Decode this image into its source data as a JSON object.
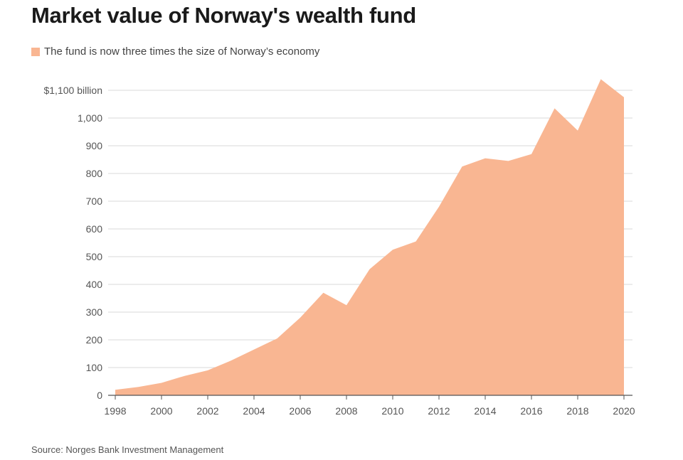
{
  "title": "Market value of Norway's wealth fund",
  "source": "Source: Norges Bank Investment Management",
  "colors": {
    "area": "#f9b692",
    "grid": "#d9d9d9",
    "axis": "#555555",
    "label": "#555555"
  },
  "chart_data": {
    "type": "area",
    "title": "Market value of Norway's wealth fund",
    "legend": {
      "placement": "top-left",
      "entries": [
        "The fund is now three times the size of Norway’s economy"
      ]
    },
    "series": [
      {
        "name": "The fund is now three times the size of Norway’s economy",
        "x": [
          1998,
          1999,
          2000,
          2001,
          2002,
          2003,
          2004,
          2005,
          2006,
          2007,
          2008,
          2009,
          2010,
          2011,
          2012,
          2013,
          2014,
          2015,
          2016,
          2017,
          2018,
          2019,
          2020
        ],
        "values": [
          20,
          30,
          45,
          70,
          90,
          125,
          165,
          205,
          280,
          370,
          325,
          455,
          525,
          555,
          680,
          825,
          855,
          845,
          870,
          1035,
          955,
          1140,
          1075
        ]
      }
    ],
    "ylim": [
      0,
      1100
    ],
    "xlim": [
      1998,
      2020
    ],
    "yticks": [
      0,
      100,
      200,
      300,
      400,
      500,
      600,
      700,
      800,
      900,
      1000,
      1100
    ],
    "ytick_labels": [
      "0",
      "100",
      "200",
      "300",
      "400",
      "500",
      "600",
      "700",
      "800",
      "900",
      "1,000",
      "$1,100 billion"
    ],
    "xticks": [
      1998,
      2000,
      2002,
      2004,
      2006,
      2008,
      2010,
      2012,
      2014,
      2016,
      2018,
      2020
    ],
    "xtick_labels": [
      "1998",
      "2000",
      "2002",
      "2004",
      "2006",
      "2008",
      "2010",
      "2012",
      "2014",
      "2016",
      "2018",
      "2020"
    ],
    "grid": true
  }
}
